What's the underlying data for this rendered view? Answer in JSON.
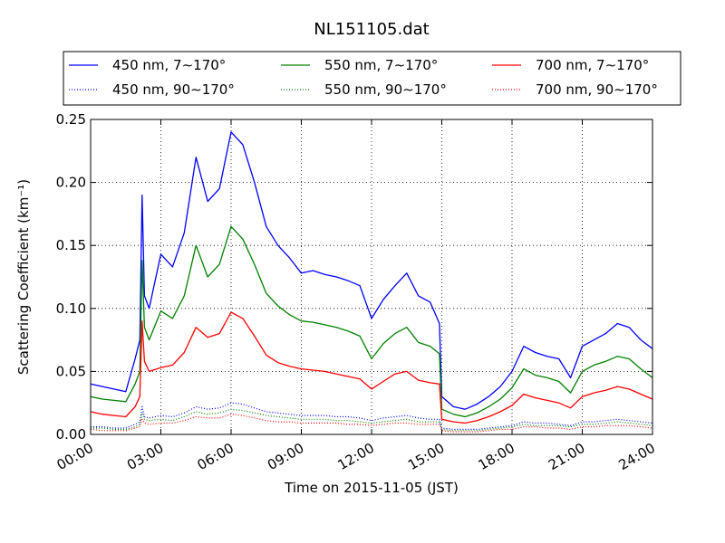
{
  "chart_data": {
    "type": "line",
    "title": "NL151105.dat",
    "xlabel": "Time on 2015-11-05 (JST)",
    "ylabel": "Scattering Coefficient (km⁻¹)",
    "x_unit": "hours",
    "xlim": [
      0,
      24
    ],
    "ylim": [
      0.0,
      0.25
    ],
    "x_ticks": [
      0,
      3,
      6,
      9,
      12,
      15,
      18,
      21,
      24
    ],
    "x_tick_labels": [
      "00:00",
      "03:00",
      "06:00",
      "09:00",
      "12:00",
      "15:00",
      "18:00",
      "21:00",
      "24:00"
    ],
    "y_ticks": [
      0.0,
      0.05,
      0.1,
      0.15,
      0.2,
      0.25
    ],
    "y_tick_labels": [
      "0.00",
      "0.05",
      "0.10",
      "0.15",
      "0.20",
      "0.25"
    ],
    "grid": true,
    "legend_position": "top",
    "colors": {
      "blue": "#0000ff",
      "green": "#008000",
      "red": "#ff0000"
    },
    "x": [
      0.0,
      0.5,
      1.0,
      1.5,
      1.9,
      2.1,
      2.2,
      2.3,
      2.5,
      3.0,
      3.5,
      4.0,
      4.5,
      5.0,
      5.5,
      6.0,
      6.5,
      7.0,
      7.5,
      8.0,
      8.5,
      9.0,
      9.5,
      10.0,
      10.5,
      11.0,
      11.5,
      12.0,
      12.5,
      13.0,
      13.5,
      14.0,
      14.5,
      14.9,
      15.0,
      15.5,
      16.0,
      16.5,
      17.0,
      17.5,
      18.0,
      18.5,
      19.0,
      19.5,
      20.0,
      20.5,
      21.0,
      21.5,
      22.0,
      22.5,
      23.0,
      23.5,
      24.0
    ],
    "series": [
      {
        "name": "450 nm, 7∼170°",
        "color": "#0000ff",
        "style": "solid",
        "values": [
          0.04,
          0.038,
          0.036,
          0.034,
          0.06,
          0.075,
          0.19,
          0.11,
          0.1,
          0.143,
          0.133,
          0.16,
          0.22,
          0.185,
          0.195,
          0.24,
          0.23,
          0.2,
          0.165,
          0.15,
          0.14,
          0.128,
          0.13,
          0.127,
          0.125,
          0.122,
          0.118,
          0.092,
          0.107,
          0.118,
          0.128,
          0.11,
          0.105,
          0.088,
          0.03,
          0.022,
          0.02,
          0.024,
          0.03,
          0.038,
          0.05,
          0.07,
          0.065,
          0.062,
          0.06,
          0.045,
          0.07,
          0.075,
          0.08,
          0.088,
          0.085,
          0.075,
          0.068
        ]
      },
      {
        "name": "550 nm, 7∼170°",
        "color": "#008000",
        "style": "solid",
        "values": [
          0.03,
          0.028,
          0.027,
          0.026,
          0.04,
          0.05,
          0.138,
          0.085,
          0.075,
          0.098,
          0.092,
          0.11,
          0.15,
          0.125,
          0.135,
          0.165,
          0.155,
          0.135,
          0.112,
          0.102,
          0.095,
          0.09,
          0.089,
          0.087,
          0.085,
          0.082,
          0.078,
          0.06,
          0.072,
          0.08,
          0.085,
          0.073,
          0.07,
          0.064,
          0.02,
          0.016,
          0.014,
          0.017,
          0.022,
          0.028,
          0.037,
          0.052,
          0.047,
          0.045,
          0.042,
          0.033,
          0.05,
          0.055,
          0.058,
          0.062,
          0.06,
          0.052,
          0.045
        ]
      },
      {
        "name": "700 nm, 7∼170°",
        "color": "#ff0000",
        "style": "solid",
        "values": [
          0.018,
          0.016,
          0.015,
          0.014,
          0.022,
          0.03,
          0.09,
          0.058,
          0.05,
          0.053,
          0.055,
          0.065,
          0.085,
          0.077,
          0.08,
          0.097,
          0.092,
          0.078,
          0.063,
          0.057,
          0.054,
          0.052,
          0.051,
          0.05,
          0.048,
          0.046,
          0.044,
          0.036,
          0.042,
          0.048,
          0.05,
          0.043,
          0.041,
          0.04,
          0.012,
          0.01,
          0.009,
          0.011,
          0.014,
          0.018,
          0.023,
          0.032,
          0.029,
          0.027,
          0.025,
          0.021,
          0.03,
          0.033,
          0.035,
          0.038,
          0.036,
          0.032,
          0.028
        ]
      },
      {
        "name": "450 nm, 90∼170°",
        "color": "#0000ff",
        "style": "dotted",
        "values": [
          0.006,
          0.006,
          0.005,
          0.005,
          0.008,
          0.01,
          0.022,
          0.014,
          0.013,
          0.015,
          0.014,
          0.017,
          0.022,
          0.02,
          0.021,
          0.025,
          0.024,
          0.021,
          0.018,
          0.017,
          0.016,
          0.015,
          0.015,
          0.015,
          0.014,
          0.014,
          0.013,
          0.011,
          0.013,
          0.014,
          0.015,
          0.013,
          0.012,
          0.012,
          0.005,
          0.004,
          0.004,
          0.004,
          0.005,
          0.006,
          0.007,
          0.01,
          0.009,
          0.009,
          0.008,
          0.007,
          0.01,
          0.01,
          0.011,
          0.012,
          0.011,
          0.01,
          0.009
        ]
      },
      {
        "name": "550 nm, 90∼170°",
        "color": "#008000",
        "style": "dotted",
        "values": [
          0.005,
          0.005,
          0.004,
          0.004,
          0.006,
          0.008,
          0.017,
          0.012,
          0.011,
          0.012,
          0.011,
          0.014,
          0.018,
          0.016,
          0.017,
          0.02,
          0.019,
          0.017,
          0.015,
          0.014,
          0.013,
          0.012,
          0.012,
          0.012,
          0.011,
          0.011,
          0.01,
          0.009,
          0.01,
          0.011,
          0.012,
          0.01,
          0.01,
          0.01,
          0.004,
          0.003,
          0.003,
          0.003,
          0.004,
          0.005,
          0.006,
          0.008,
          0.007,
          0.007,
          0.007,
          0.006,
          0.008,
          0.008,
          0.009,
          0.01,
          0.009,
          0.008,
          0.007
        ]
      },
      {
        "name": "700 nm, 90∼170°",
        "color": "#ff0000",
        "style": "dotted",
        "values": [
          0.004,
          0.003,
          0.003,
          0.003,
          0.005,
          0.006,
          0.012,
          0.009,
          0.008,
          0.009,
          0.009,
          0.011,
          0.014,
          0.013,
          0.013,
          0.016,
          0.015,
          0.013,
          0.011,
          0.01,
          0.01,
          0.009,
          0.009,
          0.009,
          0.009,
          0.008,
          0.008,
          0.007,
          0.008,
          0.009,
          0.009,
          0.008,
          0.008,
          0.008,
          0.003,
          0.002,
          0.002,
          0.002,
          0.003,
          0.004,
          0.004,
          0.006,
          0.006,
          0.005,
          0.005,
          0.004,
          0.006,
          0.006,
          0.007,
          0.007,
          0.007,
          0.006,
          0.005
        ]
      }
    ]
  }
}
